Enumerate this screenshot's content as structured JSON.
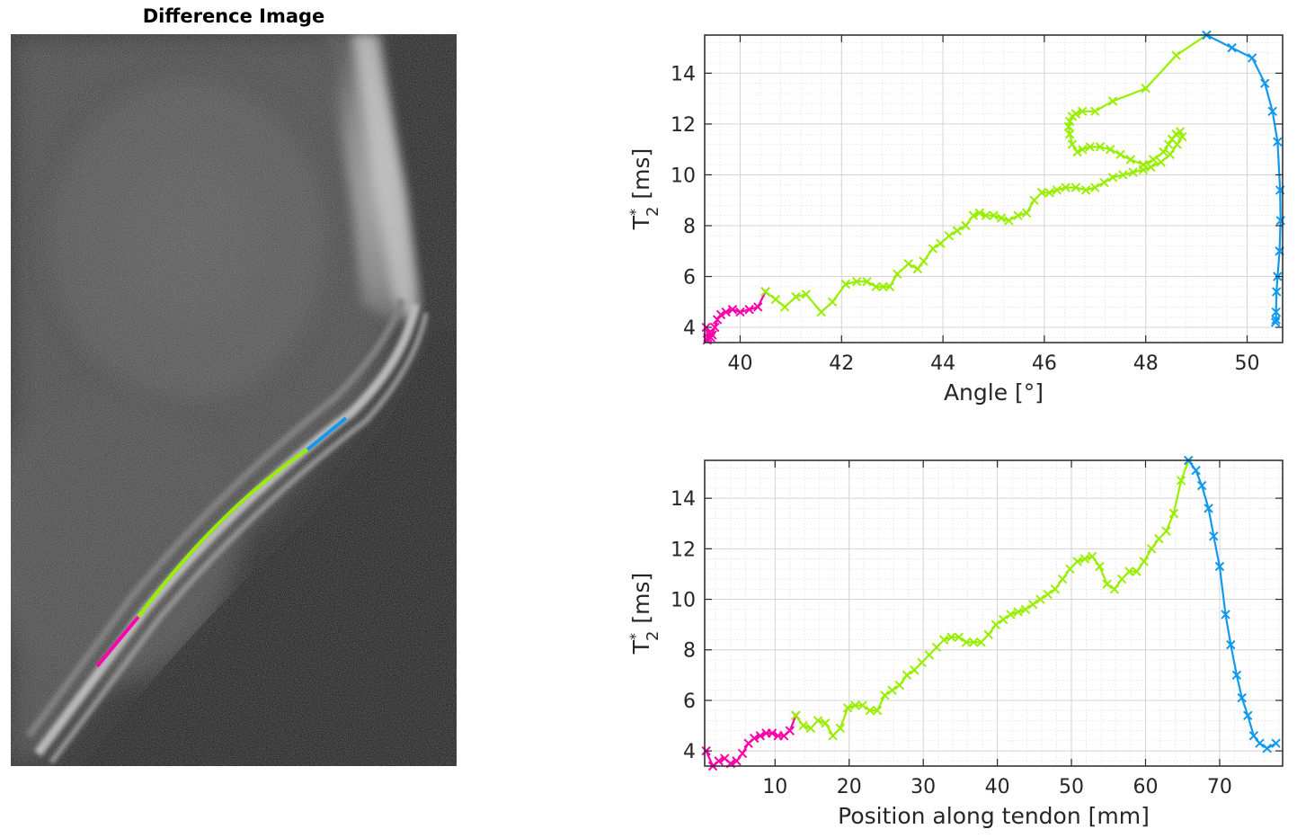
{
  "image_panel": {
    "title": "Difference Image",
    "overlay_colors": [
      "#ff00aa",
      "#99ee00",
      "#1199ee"
    ]
  },
  "chart_data": [
    {
      "type": "line",
      "xlabel": "Angle [°]",
      "ylabel": {
        "base": "T",
        "sup": "*",
        "sub": "2",
        "unit": " [ms]"
      },
      "xlim": [
        39.3,
        50.7
      ],
      "ylim": [
        3.4,
        15.5
      ],
      "xticks": [
        40,
        42,
        44,
        46,
        48,
        50
      ],
      "yticks": [
        4,
        6,
        8,
        10,
        12,
        14
      ],
      "grid": true,
      "marker": "x",
      "series": [
        {
          "color": "#ff00aa",
          "x": [
            39.33,
            39.36,
            39.35,
            39.4,
            39.45,
            39.42,
            39.5,
            39.55,
            39.62,
            39.72,
            39.85,
            40.0,
            40.18,
            40.35,
            40.5
          ],
          "y": [
            4.0,
            3.6,
            3.5,
            3.8,
            3.7,
            3.6,
            4.0,
            4.3,
            4.5,
            4.6,
            4.7,
            4.6,
            4.7,
            4.8,
            5.4
          ]
        },
        {
          "color": "#99ee00",
          "x": [
            40.5,
            40.7,
            40.88,
            41.1,
            41.3,
            41.6,
            41.82,
            42.08,
            42.3,
            42.5,
            42.68,
            42.82,
            42.95,
            43.1,
            43.32,
            43.5,
            43.62,
            43.8,
            43.95,
            44.12,
            44.28,
            44.45,
            44.6,
            44.72,
            44.85,
            45.0,
            45.15,
            45.3,
            45.48,
            45.65,
            45.8,
            45.95,
            46.1,
            46.25,
            46.42,
            46.62,
            46.82,
            47.0,
            47.18,
            47.35,
            47.55,
            47.75,
            47.95,
            48.1,
            48.3,
            48.48,
            48.62,
            48.72,
            48.68,
            48.6,
            48.52,
            48.45,
            48.35,
            48.15,
            47.95,
            47.7,
            47.5,
            47.3,
            47.1,
            46.9,
            46.75,
            46.65,
            46.55,
            46.5,
            46.48,
            46.5,
            46.55,
            46.62,
            46.75,
            47.0,
            47.35,
            48.0,
            48.6,
            49.2
          ],
          "y": [
            5.4,
            5.1,
            4.8,
            5.2,
            5.3,
            4.6,
            5.0,
            5.7,
            5.8,
            5.8,
            5.6,
            5.6,
            5.6,
            6.1,
            6.5,
            6.3,
            6.6,
            7.1,
            7.3,
            7.6,
            7.8,
            8.0,
            8.4,
            8.5,
            8.4,
            8.4,
            8.3,
            8.2,
            8.4,
            8.5,
            9.0,
            9.3,
            9.3,
            9.4,
            9.5,
            9.5,
            9.4,
            9.5,
            9.7,
            9.9,
            10.0,
            10.1,
            10.2,
            10.3,
            10.5,
            10.8,
            11.2,
            11.5,
            11.7,
            11.6,
            11.4,
            11.2,
            10.9,
            10.6,
            10.4,
            10.6,
            10.8,
            11.0,
            11.1,
            11.1,
            11.0,
            10.9,
            11.2,
            11.6,
            11.9,
            12.1,
            12.3,
            12.4,
            12.5,
            12.5,
            12.9,
            13.4,
            14.7,
            15.5
          ]
        },
        {
          "color": "#1199ee",
          "x": [
            49.2,
            49.7,
            50.1,
            50.35,
            50.5,
            50.6,
            50.65,
            50.66,
            50.64,
            50.6,
            50.58,
            50.57,
            50.57,
            50.56
          ],
          "y": [
            15.5,
            15.0,
            14.6,
            13.6,
            12.5,
            11.3,
            9.4,
            8.2,
            7.0,
            6.0,
            5.4,
            4.6,
            4.3,
            4.2
          ]
        }
      ]
    },
    {
      "type": "line",
      "xlabel": "Position along tendon [mm]",
      "ylabel": {
        "base": "T",
        "sup": "*",
        "sub": "2",
        "unit": " [ms]"
      },
      "xlim": [
        0.5,
        78.5
      ],
      "ylim": [
        3.4,
        15.5
      ],
      "xticks": [
        10,
        20,
        30,
        40,
        50,
        60,
        70
      ],
      "yticks": [
        4,
        6,
        8,
        10,
        12,
        14
      ],
      "grid": true,
      "marker": "x",
      "series": [
        {
          "color": "#ff00aa",
          "x": [
            0.7,
            1.6,
            2.4,
            3.2,
            4.0,
            4.8,
            5.6,
            6.4,
            7.2,
            8.0,
            8.8,
            9.6,
            10.4,
            11.2,
            12.0,
            12.8
          ],
          "y": [
            4.0,
            3.4,
            3.6,
            3.7,
            3.5,
            3.6,
            3.9,
            4.3,
            4.5,
            4.6,
            4.7,
            4.7,
            4.6,
            4.6,
            4.8,
            5.4
          ]
        },
        {
          "color": "#99ee00",
          "x": [
            12.8,
            13.8,
            14.8,
            15.8,
            16.8,
            17.8,
            18.8,
            19.8,
            20.8,
            21.8,
            22.8,
            23.8,
            24.8,
            25.8,
            26.8,
            27.8,
            28.8,
            29.8,
            30.8,
            31.8,
            32.8,
            33.8,
            34.8,
            35.8,
            36.8,
            37.8,
            38.8,
            39.8,
            40.8,
            41.8,
            42.8,
            43.8,
            44.8,
            45.8,
            46.8,
            47.8,
            48.8,
            49.8,
            50.8,
            51.8,
            52.8,
            53.8,
            54.8,
            55.8,
            56.8,
            57.8,
            58.8,
            59.8,
            60.8,
            61.8,
            62.8,
            63.8,
            64.8,
            65.8
          ],
          "y": [
            5.4,
            5.0,
            4.9,
            5.2,
            5.1,
            4.6,
            4.9,
            5.7,
            5.8,
            5.8,
            5.6,
            5.6,
            6.2,
            6.4,
            6.6,
            7.0,
            7.2,
            7.5,
            7.8,
            8.1,
            8.4,
            8.5,
            8.5,
            8.3,
            8.3,
            8.3,
            8.6,
            9.0,
            9.2,
            9.4,
            9.5,
            9.6,
            9.8,
            10.0,
            10.2,
            10.4,
            10.8,
            11.2,
            11.5,
            11.6,
            11.7,
            11.3,
            10.6,
            10.4,
            10.8,
            11.1,
            11.1,
            11.5,
            12.0,
            12.4,
            12.7,
            13.4,
            14.7,
            15.5
          ]
        },
        {
          "color": "#1199ee",
          "x": [
            65.8,
            66.8,
            67.6,
            68.5,
            69.2,
            70.0,
            70.8,
            71.5,
            72.3,
            73.0,
            73.8,
            74.6,
            75.4,
            76.4,
            77.6
          ],
          "y": [
            15.5,
            15.1,
            14.5,
            13.6,
            12.5,
            11.3,
            9.4,
            8.2,
            7.0,
            6.1,
            5.4,
            4.6,
            4.3,
            4.1,
            4.3
          ]
        }
      ]
    }
  ]
}
